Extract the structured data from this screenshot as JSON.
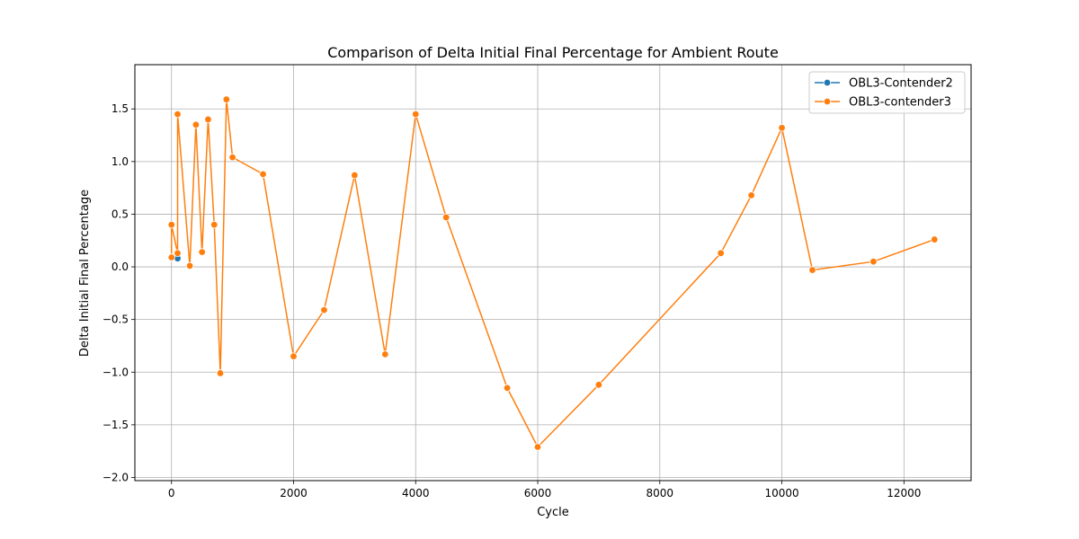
{
  "chart_data": {
    "type": "line",
    "title": "Comparison of Delta Initial Final Percentage for Ambient Route",
    "xlabel": "Cycle",
    "ylabel": "Delta Initial Final Percentage",
    "xlim": [
      -600,
      13100
    ],
    "ylim": [
      -2.03,
      1.92
    ],
    "xticks": [
      0,
      2000,
      4000,
      6000,
      8000,
      10000,
      12000
    ],
    "yticks": [
      -2.0,
      -1.5,
      -1.0,
      -0.5,
      0.0,
      0.5,
      1.0,
      1.5
    ],
    "xtick_labels": [
      "0",
      "2000",
      "4000",
      "6000",
      "8000",
      "10000",
      "12000"
    ],
    "ytick_labels": [
      "−2.0",
      "−1.5",
      "−1.0",
      "−0.5",
      "0.0",
      "0.5",
      "1.0",
      "1.5"
    ],
    "grid": true,
    "legend_position": "top-right",
    "series": [
      {
        "name": "OBL3-Contender2",
        "color": "#1f77b4",
        "marker": "circle",
        "x": [
          0,
          100
        ],
        "y": [
          0.09,
          0.08
        ]
      },
      {
        "name": "OBL3-contender3",
        "color": "#ff7f0e",
        "marker": "circle",
        "x": [
          0,
          0,
          100,
          100,
          300,
          400,
          500,
          600,
          700,
          800,
          900,
          1000,
          1500,
          2000,
          2500,
          3000,
          3500,
          4000,
          4500,
          5500,
          6000,
          7000,
          9000,
          9500,
          10000,
          10500,
          11500,
          12500
        ],
        "y": [
          0.09,
          0.4,
          0.13,
          1.45,
          0.01,
          1.35,
          0.14,
          1.4,
          0.4,
          -1.01,
          1.59,
          1.04,
          0.88,
          -0.85,
          -0.41,
          0.87,
          -0.83,
          1.45,
          0.47,
          -1.15,
          -1.71,
          -1.12,
          0.13,
          0.68,
          1.32,
          -0.03,
          0.05,
          0.26
        ]
      }
    ]
  }
}
